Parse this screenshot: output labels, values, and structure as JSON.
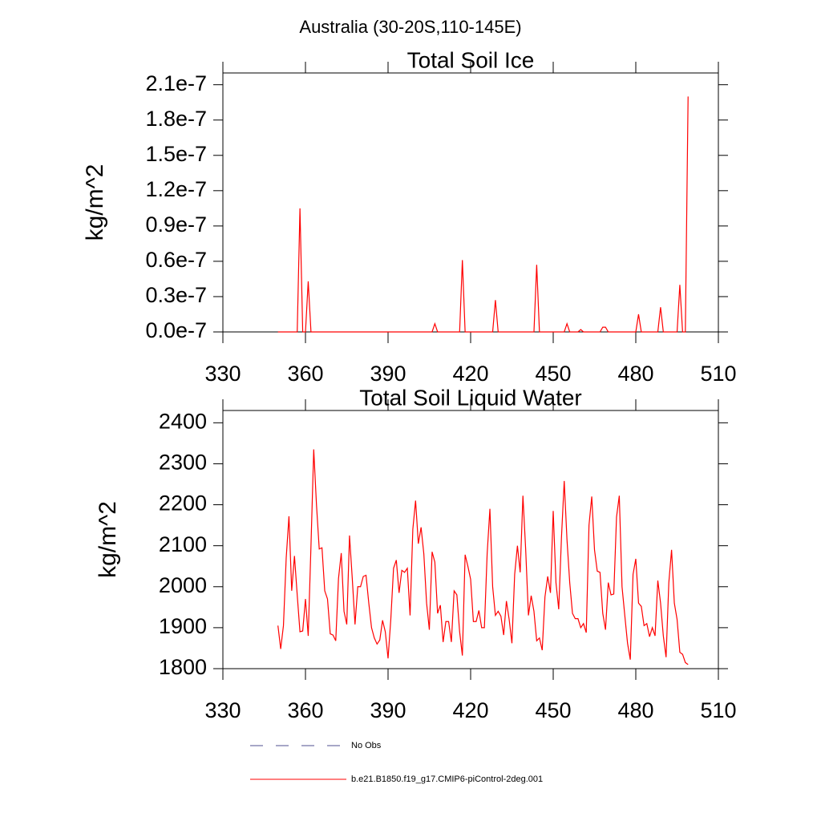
{
  "title": "Australia (30-20S,110-145E)",
  "legend": [
    {
      "name": "No Obs",
      "color": "#4f4f8f",
      "dash": true
    },
    {
      "name": "b.e21.B1850.f19_g17.CMIP6-piControl-2deg.001",
      "color": "#ff0000",
      "dash": false
    }
  ],
  "chart_data": [
    {
      "type": "line",
      "title": "Total Soil Ice",
      "y_label": "kg/m^2",
      "xlim": [
        330,
        510
      ],
      "xticks": [
        330,
        360,
        390,
        420,
        450,
        480,
        510
      ],
      "ylim": [
        0,
        2.2e-07
      ],
      "yticks": [
        {
          "value": 0,
          "label": "0.0e-7"
        },
        {
          "value": 3e-08,
          "label": "0.3e-7"
        },
        {
          "value": 6e-08,
          "label": "0.6e-7"
        },
        {
          "value": 9e-08,
          "label": "0.9e-7"
        },
        {
          "value": 1.2e-07,
          "label": "1.2e-7"
        },
        {
          "value": 1.5e-07,
          "label": "1.5e-7"
        },
        {
          "value": 1.8e-07,
          "label": "1.8e-7"
        },
        {
          "value": 2.1e-07,
          "label": "2.1e-7"
        }
      ],
      "x": [
        350,
        351,
        352,
        353,
        354,
        355,
        356,
        357,
        358,
        359,
        360,
        361,
        362,
        363,
        364,
        365,
        366,
        367,
        368,
        369,
        370,
        371,
        372,
        373,
        374,
        375,
        376,
        377,
        378,
        379,
        380,
        381,
        382,
        383,
        384,
        385,
        386,
        387,
        388,
        389,
        390,
        391,
        392,
        393,
        394,
        395,
        396,
        397,
        398,
        399,
        400,
        401,
        402,
        403,
        404,
        405,
        406,
        407,
        408,
        409,
        410,
        411,
        412,
        413,
        414,
        415,
        416,
        417,
        418,
        419,
        420,
        421,
        422,
        423,
        424,
        425,
        426,
        427,
        428,
        429,
        430,
        431,
        432,
        433,
        434,
        435,
        436,
        437,
        438,
        439,
        440,
        441,
        442,
        443,
        444,
        445,
        446,
        447,
        448,
        449,
        450,
        451,
        452,
        453,
        454,
        455,
        456,
        457,
        458,
        459,
        460,
        461,
        462,
        463,
        464,
        465,
        466,
        467,
        468,
        469,
        470,
        471,
        472,
        473,
        474,
        475,
        476,
        477,
        478,
        479,
        480,
        481,
        482,
        483,
        484,
        485,
        486,
        487,
        488,
        489,
        490,
        491,
        492,
        493,
        494,
        495,
        496,
        497,
        498,
        499
      ],
      "series": [
        {
          "color": "#ff0000",
          "values": [
            0,
            0,
            0,
            0,
            0,
            0,
            0,
            0,
            1.05e-07,
            0,
            0,
            4.3e-08,
            0,
            0,
            0,
            0,
            0,
            0,
            0,
            0,
            0,
            0,
            0,
            0,
            0,
            0,
            0,
            0,
            0,
            0,
            0,
            0,
            0,
            0,
            0,
            0,
            0,
            0,
            0,
            0,
            0,
            0,
            0,
            0,
            0,
            0,
            0,
            0,
            0,
            0,
            0,
            0,
            0,
            0,
            0,
            0,
            0,
            7e-09,
            0,
            0,
            0,
            0,
            0,
            0,
            0,
            0,
            0,
            6.1e-08,
            0,
            0,
            0,
            0,
            0,
            0,
            0,
            0,
            0,
            0,
            0,
            2.7e-08,
            0,
            0,
            0,
            0,
            0,
            0,
            0,
            0,
            0,
            0,
            0,
            0,
            0,
            0,
            5.7e-08,
            0,
            0,
            0,
            0,
            0,
            0,
            0,
            0,
            0,
            0,
            7e-09,
            0,
            0,
            0,
            0,
            2e-09,
            0,
            0,
            0,
            0,
            0,
            0,
            0,
            4e-09,
            4e-09,
            0,
            0,
            0,
            0,
            0,
            0,
            0,
            0,
            0,
            0,
            0,
            1.5e-08,
            0,
            0,
            0,
            0,
            0,
            0,
            0,
            2.1e-08,
            0,
            0,
            0,
            0,
            0,
            0,
            4e-08,
            0,
            0,
            2e-07
          ]
        }
      ]
    },
    {
      "type": "line",
      "title": "Total Soil Liquid Water",
      "y_label": "kg/m^2",
      "xlim": [
        330,
        510
      ],
      "xticks": [
        330,
        360,
        390,
        420,
        450,
        480,
        510
      ],
      "ylim": [
        1800,
        2430
      ],
      "yticks": [
        1800,
        1900,
        2000,
        2100,
        2200,
        2300,
        2400
      ],
      "x": [
        350,
        351,
        352,
        353,
        354,
        355,
        356,
        357,
        358,
        359,
        360,
        361,
        362,
        363,
        364,
        365,
        366,
        367,
        368,
        369,
        370,
        371,
        372,
        373,
        374,
        375,
        376,
        377,
        378,
        379,
        380,
        381,
        382,
        383,
        384,
        385,
        386,
        387,
        388,
        389,
        390,
        391,
        392,
        393,
        394,
        395,
        396,
        397,
        398,
        399,
        400,
        401,
        402,
        403,
        404,
        405,
        406,
        407,
        408,
        409,
        410,
        411,
        412,
        413,
        414,
        415,
        416,
        417,
        418,
        419,
        420,
        421,
        422,
        423,
        424,
        425,
        426,
        427,
        428,
        429,
        430,
        431,
        432,
        433,
        434,
        435,
        436,
        437,
        438,
        439,
        440,
        441,
        442,
        443,
        444,
        445,
        446,
        447,
        448,
        449,
        450,
        451,
        452,
        453,
        454,
        455,
        456,
        457,
        458,
        459,
        460,
        461,
        462,
        463,
        464,
        465,
        466,
        467,
        468,
        469,
        470,
        471,
        472,
        473,
        474,
        475,
        476,
        477,
        478,
        479,
        480,
        481,
        482,
        483,
        484,
        485,
        486,
        487,
        488,
        489,
        490,
        491,
        492,
        493,
        494,
        495,
        496,
        497,
        498,
        499
      ],
      "series": [
        {
          "color": "#ff0000",
          "values": [
            1905,
            1848,
            1905,
            2070,
            2172,
            1990,
            2075,
            1980,
            1890,
            1892,
            1970,
            1880,
            2100,
            2335,
            2200,
            2092,
            2095,
            1990,
            1970,
            1885,
            1882,
            1868,
            2020,
            2082,
            1940,
            1908,
            2125,
            2020,
            1908,
            2000,
            2000,
            2025,
            2028,
            1960,
            1900,
            1875,
            1860,
            1870,
            1918,
            1890,
            1825,
            1920,
            2045,
            2065,
            1985,
            2040,
            2035,
            2045,
            1930,
            2140,
            2210,
            2105,
            2145,
            2080,
            1960,
            1895,
            2085,
            2060,
            1935,
            1955,
            1865,
            1915,
            1915,
            1865,
            1990,
            1980,
            1890,
            1832,
            2078,
            2050,
            2018,
            1915,
            1915,
            1942,
            1900,
            1900,
            2080,
            2190,
            2000,
            1930,
            1940,
            1928,
            1882,
            1965,
            1920,
            1862,
            2030,
            2100,
            2035,
            2222,
            2090,
            1930,
            1978,
            1940,
            1868,
            1875,
            1845,
            1975,
            2025,
            1985,
            2185,
            2010,
            1945,
            2120,
            2258,
            2115,
            2010,
            1935,
            1922,
            1922,
            1900,
            1910,
            1888,
            2150,
            2220,
            2090,
            2038,
            2035,
            1935,
            1895,
            2010,
            1980,
            1982,
            2170,
            2222,
            2000,
            1930,
            1862,
            1822,
            2030,
            2068,
            1960,
            1952,
            1905,
            1910,
            1878,
            1900,
            1880,
            2015,
            1960,
            1880,
            1828,
            2010,
            2090,
            1960,
            1920,
            1840,
            1835,
            1815,
            1810
          ]
        }
      ]
    }
  ]
}
